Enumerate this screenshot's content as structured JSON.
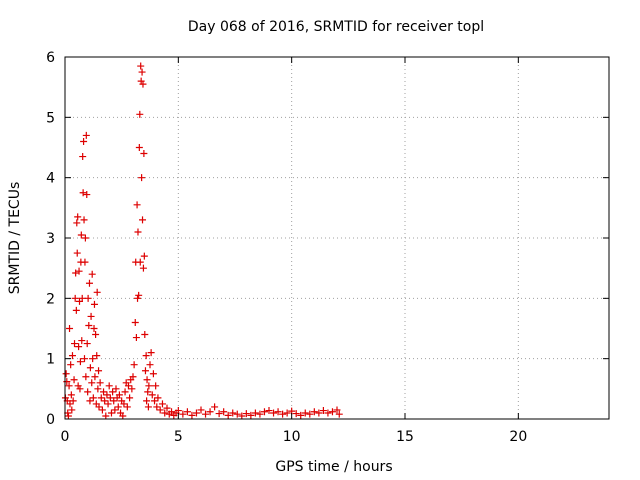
{
  "chart_data": {
    "type": "scatter",
    "title": "Day 068 of 2016, SRMTID for receiver topl",
    "xlabel": "GPS time / hours",
    "ylabel": "SRMTID / TECUs",
    "xlim": [
      0,
      24
    ],
    "ylim": [
      0,
      6
    ],
    "xticks": [
      0,
      5,
      10,
      15,
      20
    ],
    "yticks": [
      0,
      1,
      2,
      3,
      4,
      5,
      6
    ],
    "grid": true,
    "marker": "+",
    "series": [
      {
        "name": "SRMTID",
        "color": "#dd0000",
        "points": [
          [
            0.02,
            0.35
          ],
          [
            0.05,
            0.75
          ],
          [
            0.08,
            0.62
          ],
          [
            0.1,
            0.3
          ],
          [
            0.12,
            0.1
          ],
          [
            0.15,
            0.05
          ],
          [
            0.18,
            0.55
          ],
          [
            0.2,
            1.5
          ],
          [
            0.22,
            0.25
          ],
          [
            0.25,
            0.9
          ],
          [
            0.28,
            0.4
          ],
          [
            0.3,
            0.15
          ],
          [
            0.33,
            1.05
          ],
          [
            0.36,
            0.3
          ],
          [
            0.4,
            0.65
          ],
          [
            0.42,
            1.25
          ],
          [
            0.45,
            2.0
          ],
          [
            0.47,
            2.42
          ],
          [
            0.5,
            1.8
          ],
          [
            0.52,
            3.25
          ],
          [
            0.54,
            2.75
          ],
          [
            0.56,
            3.35
          ],
          [
            0.58,
            0.55
          ],
          [
            0.6,
            1.2
          ],
          [
            0.62,
            2.45
          ],
          [
            0.64,
            1.95
          ],
          [
            0.66,
            0.5
          ],
          [
            0.68,
            0.95
          ],
          [
            0.7,
            2.6
          ],
          [
            0.72,
            3.05
          ],
          [
            0.74,
            1.3
          ],
          [
            0.76,
            2.0
          ],
          [
            0.78,
            4.35
          ],
          [
            0.8,
            3.75
          ],
          [
            0.82,
            4.6
          ],
          [
            0.84,
            3.3
          ],
          [
            0.86,
            1.0
          ],
          [
            0.88,
            2.6
          ],
          [
            0.9,
            3.0
          ],
          [
            0.92,
            0.7
          ],
          [
            0.94,
            4.7
          ],
          [
            0.96,
            3.72
          ],
          [
            0.98,
            1.25
          ],
          [
            1.0,
            0.45
          ],
          [
            1.02,
            2.0
          ],
          [
            1.05,
            1.55
          ],
          [
            1.08,
            2.25
          ],
          [
            1.1,
            0.3
          ],
          [
            1.12,
            0.85
          ],
          [
            1.15,
            1.7
          ],
          [
            1.18,
            0.6
          ],
          [
            1.2,
            2.4
          ],
          [
            1.22,
            1.0
          ],
          [
            1.25,
            0.35
          ],
          [
            1.28,
            1.5
          ],
          [
            1.3,
            1.9
          ],
          [
            1.32,
            0.7
          ],
          [
            1.35,
            1.4
          ],
          [
            1.38,
            0.25
          ],
          [
            1.4,
            1.05
          ],
          [
            1.42,
            2.1
          ],
          [
            1.45,
            0.5
          ],
          [
            1.48,
            0.8
          ],
          [
            1.5,
            0.2
          ],
          [
            1.55,
            0.6
          ],
          [
            1.6,
            0.35
          ],
          [
            1.65,
            0.15
          ],
          [
            1.7,
            0.45
          ],
          [
            1.75,
            0.3
          ],
          [
            1.8,
            0.05
          ],
          [
            1.85,
            0.4
          ],
          [
            1.9,
            0.25
          ],
          [
            1.95,
            0.55
          ],
          [
            2.0,
            0.35
          ],
          [
            2.05,
            0.1
          ],
          [
            2.1,
            0.45
          ],
          [
            2.15,
            0.3
          ],
          [
            2.2,
            0.15
          ],
          [
            2.25,
            0.5
          ],
          [
            2.3,
            0.35
          ],
          [
            2.35,
            0.2
          ],
          [
            2.4,
            0.4
          ],
          [
            2.45,
            0.1
          ],
          [
            2.5,
            0.3
          ],
          [
            2.55,
            0.05
          ],
          [
            2.6,
            0.25
          ],
          [
            2.65,
            0.45
          ],
          [
            2.7,
            0.6
          ],
          [
            2.75,
            0.2
          ],
          [
            2.8,
            0.55
          ],
          [
            2.85,
            0.35
          ],
          [
            2.9,
            0.65
          ],
          [
            2.95,
            0.5
          ],
          [
            3.0,
            0.7
          ],
          [
            3.05,
            0.9
          ],
          [
            3.1,
            1.6
          ],
          [
            3.12,
            2.6
          ],
          [
            3.15,
            1.35
          ],
          [
            3.18,
            3.55
          ],
          [
            3.2,
            2.0
          ],
          [
            3.22,
            3.1
          ],
          [
            3.25,
            2.05
          ],
          [
            3.28,
            4.5
          ],
          [
            3.3,
            5.05
          ],
          [
            3.32,
            2.6
          ],
          [
            3.34,
            5.85
          ],
          [
            3.36,
            5.6
          ],
          [
            3.38,
            4.0
          ],
          [
            3.4,
            5.75
          ],
          [
            3.42,
            3.3
          ],
          [
            3.44,
            5.55
          ],
          [
            3.46,
            2.5
          ],
          [
            3.48,
            4.4
          ],
          [
            3.5,
            2.7
          ],
          [
            3.52,
            1.4
          ],
          [
            3.55,
            0.8
          ],
          [
            3.58,
            1.05
          ],
          [
            3.6,
            0.3
          ],
          [
            3.62,
            0.65
          ],
          [
            3.65,
            0.45
          ],
          [
            3.68,
            0.2
          ],
          [
            3.7,
            0.55
          ],
          [
            3.75,
            0.9
          ],
          [
            3.8,
            1.1
          ],
          [
            3.85,
            0.4
          ],
          [
            3.9,
            0.75
          ],
          [
            3.95,
            0.3
          ],
          [
            4.0,
            0.55
          ],
          [
            4.05,
            0.2
          ],
          [
            4.1,
            0.35
          ],
          [
            4.2,
            0.15
          ],
          [
            4.3,
            0.25
          ],
          [
            4.4,
            0.1
          ],
          [
            4.5,
            0.18
          ],
          [
            4.6,
            0.08
          ],
          [
            4.7,
            0.12
          ],
          [
            4.8,
            0.06
          ],
          [
            4.9,
            0.1
          ],
          [
            5.0,
            0.14
          ],
          [
            5.2,
            0.08
          ],
          [
            5.4,
            0.12
          ],
          [
            5.6,
            0.06
          ],
          [
            5.8,
            0.1
          ],
          [
            6.0,
            0.15
          ],
          [
            6.2,
            0.08
          ],
          [
            6.4,
            0.12
          ],
          [
            6.6,
            0.2
          ],
          [
            6.8,
            0.09
          ],
          [
            7.0,
            0.12
          ],
          [
            7.2,
            0.06
          ],
          [
            7.4,
            0.1
          ],
          [
            7.6,
            0.08
          ],
          [
            7.8,
            0.05
          ],
          [
            8.0,
            0.09
          ],
          [
            8.2,
            0.06
          ],
          [
            8.4,
            0.1
          ],
          [
            8.6,
            0.08
          ],
          [
            8.8,
            0.12
          ],
          [
            9.0,
            0.14
          ],
          [
            9.2,
            0.1
          ],
          [
            9.4,
            0.12
          ],
          [
            9.6,
            0.08
          ],
          [
            9.8,
            0.1
          ],
          [
            10.0,
            0.13
          ],
          [
            10.2,
            0.09
          ],
          [
            10.4,
            0.06
          ],
          [
            10.6,
            0.1
          ],
          [
            10.8,
            0.08
          ],
          [
            11.0,
            0.12
          ],
          [
            11.2,
            0.1
          ],
          [
            11.4,
            0.14
          ],
          [
            11.6,
            0.1
          ],
          [
            11.8,
            0.12
          ],
          [
            12.0,
            0.15
          ],
          [
            12.1,
            0.08
          ]
        ]
      }
    ]
  }
}
